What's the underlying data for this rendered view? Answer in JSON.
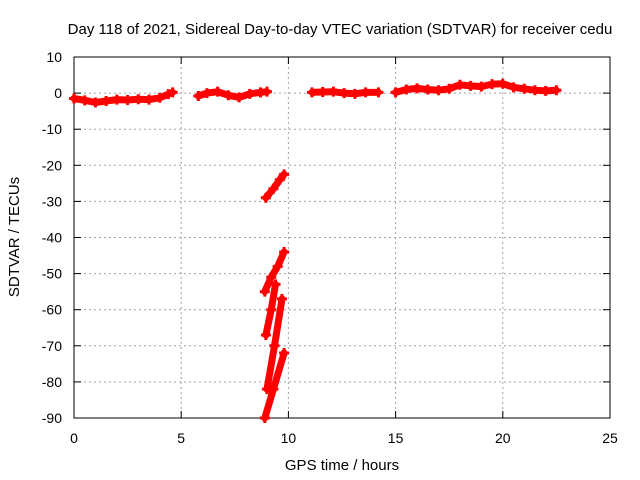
{
  "chart_data": {
    "type": "scatter",
    "title": "Day 118 of 2021, Sidereal Day-to-day VTEC variation (SDTVAR) for receiver cedu",
    "xlabel": "GPS time / hours",
    "ylabel": "SDTVAR / TECUs",
    "xlim": [
      0,
      25
    ],
    "ylim": [
      -90,
      10
    ],
    "xticks": [
      0,
      5,
      10,
      15,
      20,
      25
    ],
    "yticks": [
      10,
      0,
      -10,
      -20,
      -30,
      -40,
      -50,
      -60,
      -70,
      -80,
      -90
    ],
    "grid": true,
    "marker_color": "#ff0000",
    "series": [
      {
        "name": "seg1",
        "points": [
          [
            0.0,
            -1.5
          ],
          [
            0.5,
            -2.0
          ],
          [
            1.0,
            -2.6
          ],
          [
            1.5,
            -2.2
          ],
          [
            2.0,
            -1.8
          ],
          [
            2.5,
            -1.9
          ],
          [
            3.0,
            -1.7
          ],
          [
            3.5,
            -1.8
          ],
          [
            4.0,
            -1.3
          ],
          [
            4.4,
            -0.3
          ],
          [
            4.6,
            0.2
          ]
        ]
      },
      {
        "name": "seg2",
        "points": [
          [
            5.8,
            -0.8
          ],
          [
            6.2,
            0.0
          ],
          [
            6.7,
            0.4
          ],
          [
            7.2,
            -0.6
          ],
          [
            7.7,
            -1.2
          ],
          [
            8.2,
            -0.2
          ],
          [
            8.7,
            0.2
          ],
          [
            9.0,
            0.4
          ]
        ]
      },
      {
        "name": "seg3",
        "points": [
          [
            8.95,
            -29
          ],
          [
            9.3,
            -26.5
          ],
          [
            9.6,
            -24
          ],
          [
            9.8,
            -22.5
          ]
        ]
      },
      {
        "name": "seg4",
        "points": [
          [
            8.9,
            -55
          ],
          [
            9.2,
            -51
          ],
          [
            9.5,
            -48
          ],
          [
            9.8,
            -44
          ]
        ]
      },
      {
        "name": "seg5",
        "points": [
          [
            8.95,
            -67
          ],
          [
            9.2,
            -60
          ],
          [
            9.4,
            -53
          ]
        ]
      },
      {
        "name": "seg6",
        "points": [
          [
            9.0,
            -82
          ],
          [
            9.35,
            -70
          ],
          [
            9.7,
            -57
          ]
        ]
      },
      {
        "name": "seg7",
        "points": [
          [
            8.9,
            -90
          ],
          [
            9.3,
            -82
          ],
          [
            9.8,
            -72
          ]
        ]
      },
      {
        "name": "seg8",
        "points": [
          [
            11.1,
            0.2
          ],
          [
            11.6,
            0.3
          ],
          [
            12.1,
            0.4
          ],
          [
            12.6,
            0.0
          ],
          [
            13.1,
            -0.2
          ],
          [
            13.6,
            0.2
          ],
          [
            14.2,
            0.2
          ]
        ]
      },
      {
        "name": "seg9",
        "points": [
          [
            15.0,
            0.2
          ],
          [
            15.5,
            1.0
          ],
          [
            16.0,
            1.3
          ],
          [
            16.5,
            1.0
          ],
          [
            17.0,
            0.8
          ],
          [
            17.5,
            1.2
          ],
          [
            18.0,
            2.3
          ],
          [
            18.5,
            2.0
          ],
          [
            19.0,
            1.8
          ],
          [
            19.5,
            2.5
          ],
          [
            20.0,
            2.6
          ],
          [
            20.5,
            1.6
          ],
          [
            21.0,
            1.2
          ],
          [
            21.5,
            0.8
          ],
          [
            22.0,
            0.6
          ],
          [
            22.5,
            0.8
          ]
        ]
      }
    ]
  }
}
